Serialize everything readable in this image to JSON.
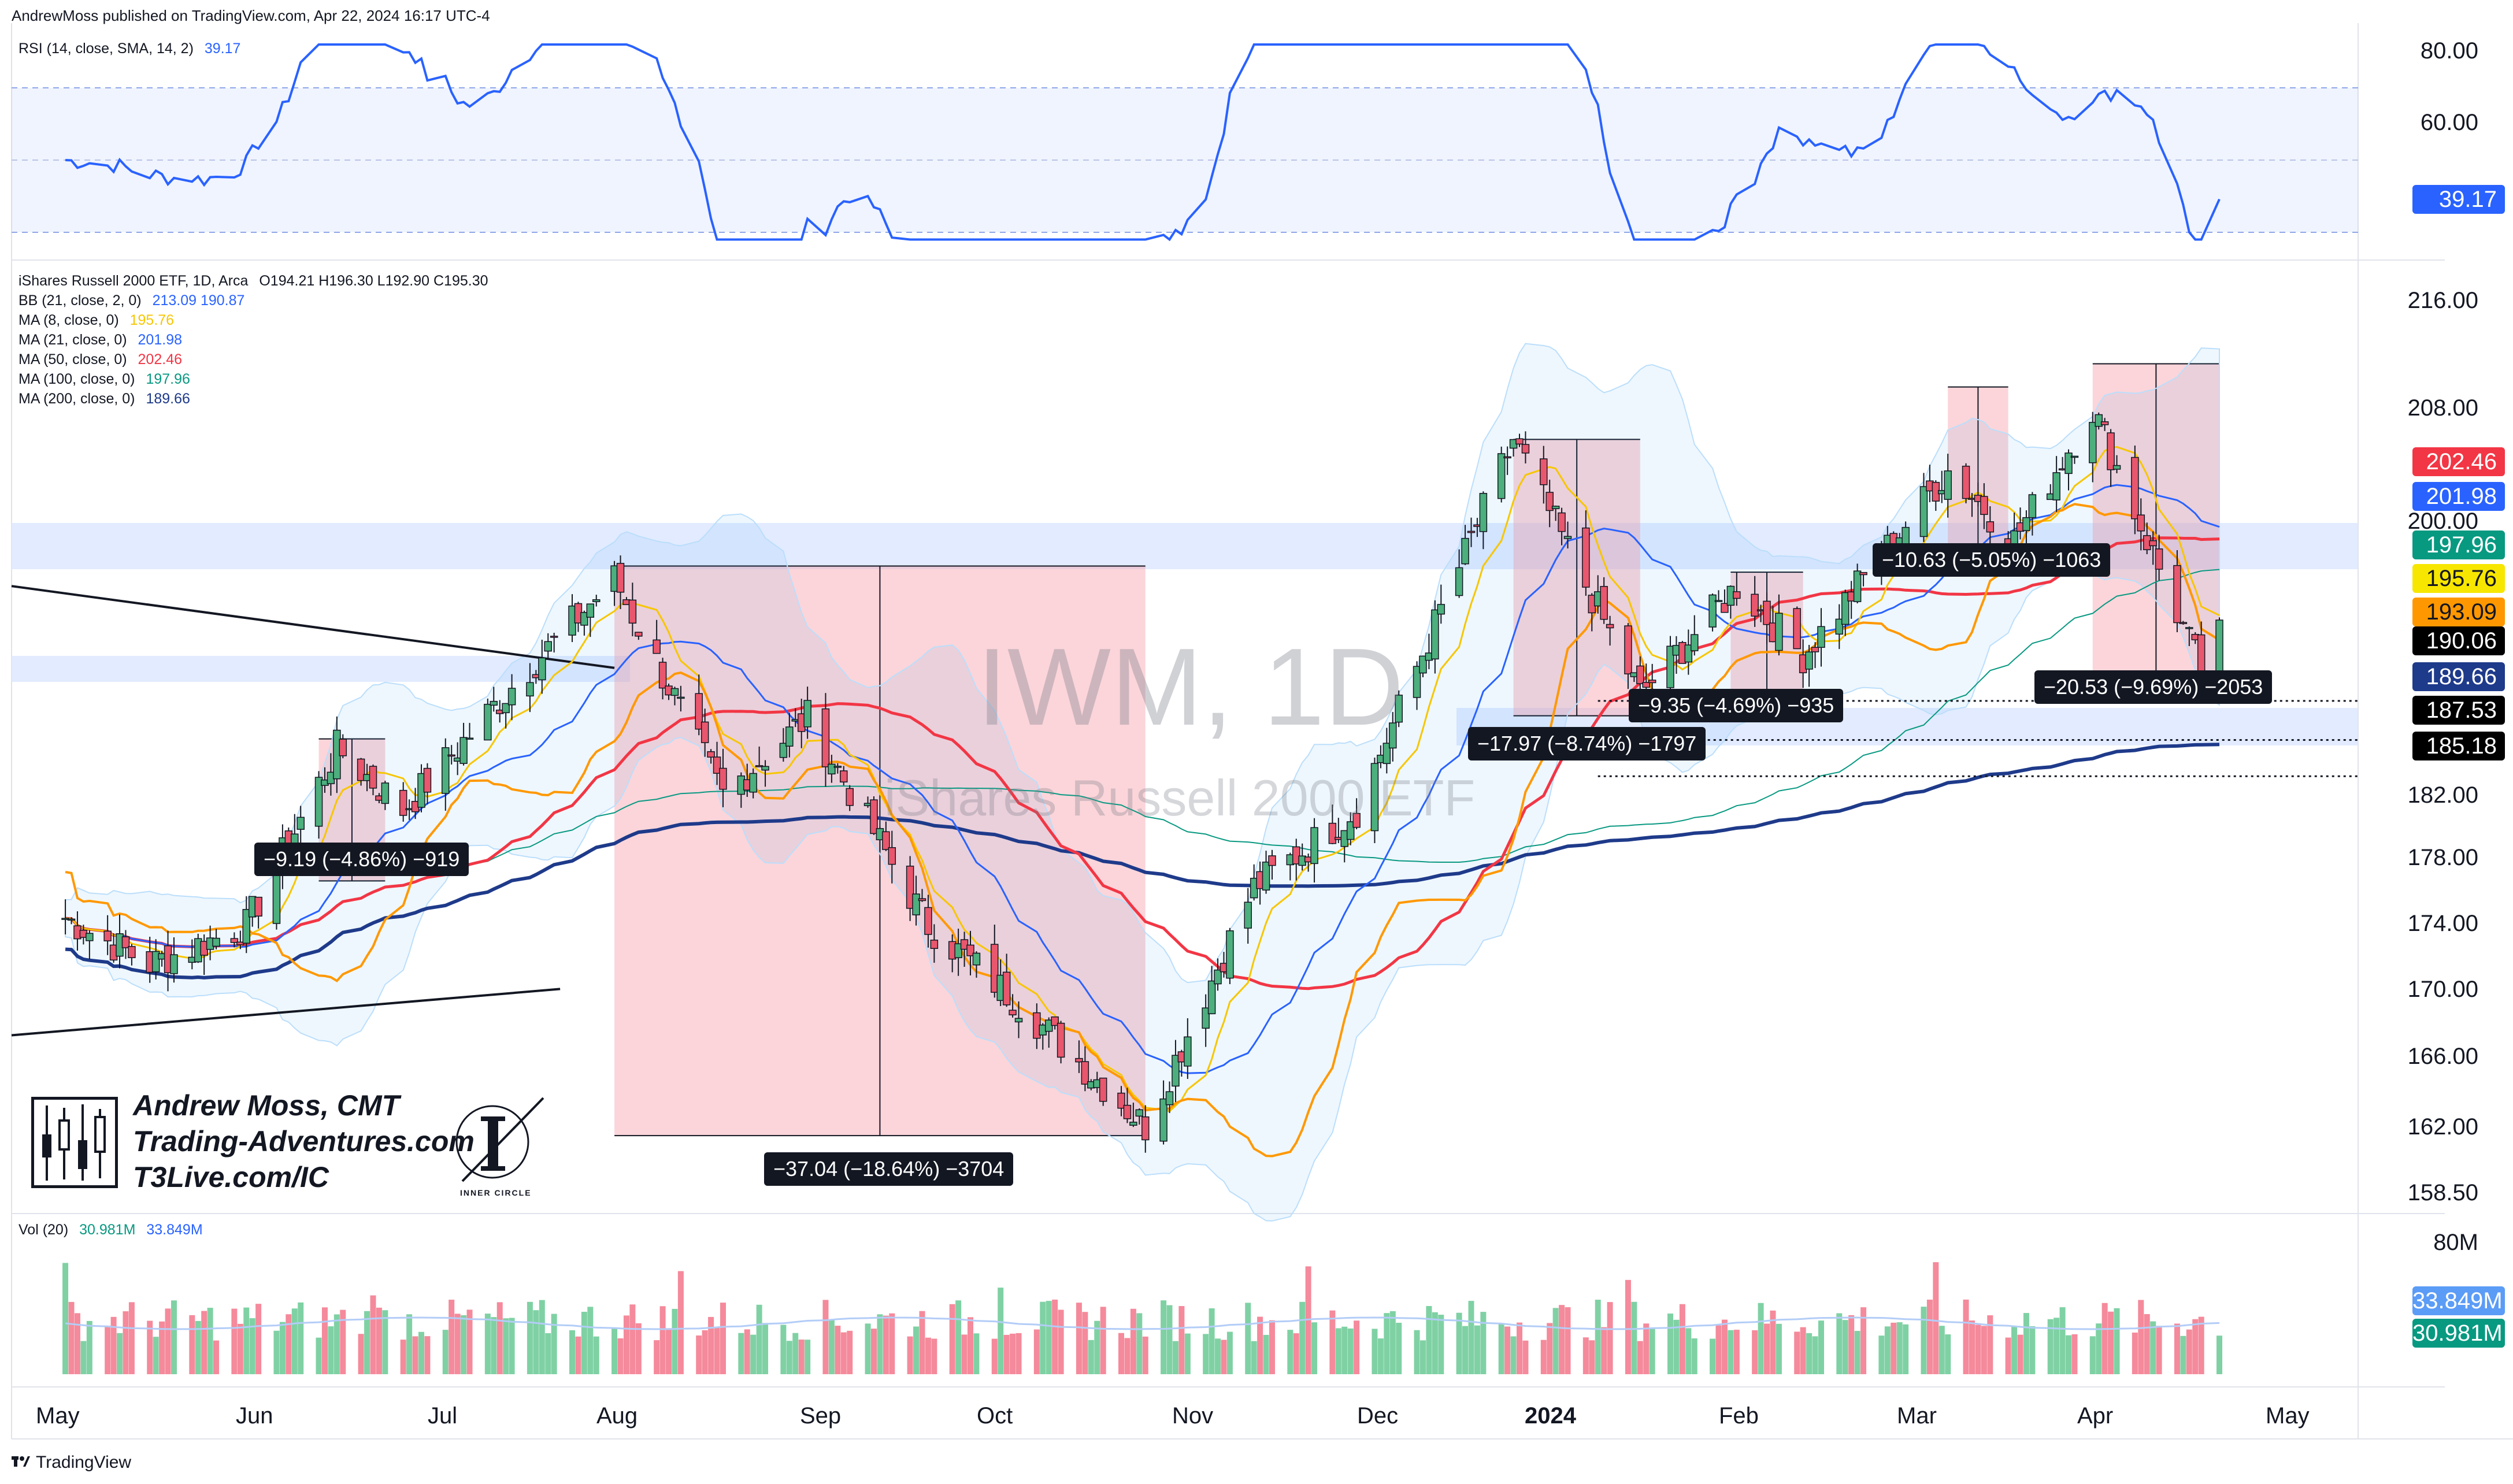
{
  "header": {
    "published": "AndrewMoss published on TradingView.com, Apr 22, 2024 16:17 UTC-4"
  },
  "rsi": {
    "legend": "RSI (14, close, SMA, 14, 2)",
    "value": "39.17",
    "levels": [
      "80.00",
      "60.00"
    ],
    "tag": "39.17"
  },
  "main": {
    "legend_title": "iShares Russell 2000 ETF, 1D, Arca",
    "ohlc": "O194.21  H196.30  L192.90  C195.30",
    "indicators": [
      {
        "label": "BB (21, close, 2, 0)",
        "values": "213.09  190.87",
        "color": "#2962ff"
      },
      {
        "label": "MA (8, close, 0)",
        "values": "195.76",
        "color": "#f7c600"
      },
      {
        "label": "MA (21, close, 0)",
        "values": "201.98",
        "color": "#2962ff"
      },
      {
        "label": "MA (50, close, 0)",
        "values": "202.46",
        "color": "#f23645"
      },
      {
        "label": "MA (100, close, 0)",
        "values": "197.96",
        "color": "#089981"
      },
      {
        "label": "MA (200, close, 0)",
        "values": "189.66",
        "color": "#1e3a8a"
      }
    ],
    "watermark_symbol": "IWM, 1D",
    "watermark_name": "iShares Russell 2000 ETF",
    "price_axis": [
      "216.00",
      "208.00",
      "200.00",
      "182.00",
      "178.00",
      "174.00",
      "170.00",
      "166.00",
      "162.00",
      "158.50"
    ],
    "price_tags": [
      {
        "value": "202.46",
        "bg": "#f23645",
        "fg": "#ffffff"
      },
      {
        "value": "201.98",
        "bg": "#2962ff",
        "fg": "#ffffff"
      },
      {
        "value": "197.96",
        "bg": "#089981",
        "fg": "#ffffff"
      },
      {
        "value": "195.76",
        "bg": "#f7e600",
        "fg": "#131722"
      },
      {
        "value": "193.09",
        "bg": "#ff9800",
        "fg": "#131722"
      },
      {
        "value": "190.06",
        "bg": "#000000",
        "fg": "#ffffff"
      },
      {
        "value": "189.66",
        "bg": "#1e3a8a",
        "fg": "#ffffff"
      },
      {
        "value": "187.53",
        "bg": "#000000",
        "fg": "#ffffff"
      },
      {
        "value": "185.18",
        "bg": "#000000",
        "fg": "#ffffff"
      }
    ],
    "annotations": [
      "−9.19 (−4.86%) −919",
      "−37.04 (−18.64%) −3704",
      "−17.97 (−8.74%) −1797",
      "−9.35 (−4.69%) −935",
      "−10.63 (−5.05%) −1063",
      "−20.53 (−9.69%) −2053"
    ]
  },
  "branding": {
    "name": "Andrew Moss, CMT",
    "site": "Trading-Adventures.com",
    "site2": "T3Live.com/IC",
    "badge": "INNER CIRCLE"
  },
  "volume": {
    "legend": "Vol (20)",
    "value1": "30.981M",
    "value2": "33.849M",
    "axis_top": "80M",
    "tag_ma": "33.849M",
    "tag_vol": "30.981M"
  },
  "time_axis": [
    "May",
    "Jun",
    "Jul",
    "Aug",
    "Sep",
    "Oct",
    "Nov",
    "Dec",
    "2024",
    "Feb",
    "Mar",
    "Apr",
    "May"
  ],
  "footer": "TradingView",
  "chart_data": {
    "type": "candlestick",
    "title": "iShares Russell 2000 ETF, 1D, Arca",
    "symbol": "IWM",
    "timeframe": "1D",
    "last_bar": {
      "open": 194.21,
      "high": 196.3,
      "low": 192.9,
      "close": 195.3
    },
    "ylim": [
      158.5,
      216.0
    ],
    "x_range": [
      "2023-05",
      "2024-05"
    ],
    "approx_close_path": [
      {
        "date": "2023-05-01",
        "close": 176.0
      },
      {
        "date": "2023-05-15",
        "close": 173.0
      },
      {
        "date": "2023-05-31",
        "close": 175.5
      },
      {
        "date": "2023-06-15",
        "close": 187.0
      },
      {
        "date": "2023-06-26",
        "close": 183.0
      },
      {
        "date": "2023-07-14",
        "close": 191.0
      },
      {
        "date": "2023-07-31",
        "close": 198.0
      },
      {
        "date": "2023-08-18",
        "close": 184.0
      },
      {
        "date": "2023-09-01",
        "close": 189.0
      },
      {
        "date": "2023-09-21",
        "close": 175.5
      },
      {
        "date": "2023-10-06",
        "close": 170.5
      },
      {
        "date": "2023-10-27",
        "close": 162.5
      },
      {
        "date": "2023-11-14",
        "close": 178.0
      },
      {
        "date": "2023-12-01",
        "close": 183.0
      },
      {
        "date": "2023-12-27",
        "close": 207.0
      },
      {
        "date": "2024-01-17",
        "close": 190.5
      },
      {
        "date": "2024-02-02",
        "close": 197.5
      },
      {
        "date": "2024-02-13",
        "close": 193.0
      },
      {
        "date": "2024-03-08",
        "close": 205.0
      },
      {
        "date": "2024-03-19",
        "close": 200.5
      },
      {
        "date": "2024-04-01",
        "close": 209.0
      },
      {
        "date": "2024-04-19",
        "close": 192.0
      },
      {
        "date": "2024-04-22",
        "close": 195.3
      }
    ],
    "moving_averages": {
      "MA8": 195.76,
      "MA21": 201.98,
      "MA50": 202.46,
      "MA100": 197.96,
      "MA200": 189.66
    },
    "bollinger": {
      "upper": 213.09,
      "lower": 190.87
    },
    "horizontal_levels": [
      190.06,
      187.53,
      185.18
    ],
    "drawdowns": [
      {
        "label": "−9.19 (−4.86%) −919",
        "change": -9.19,
        "pct": -4.86
      },
      {
        "label": "−37.04 (−18.64%) −3704",
        "change": -37.04,
        "pct": -18.64
      },
      {
        "label": "−17.97 (−8.74%) −1797",
        "change": -17.97,
        "pct": -8.74
      },
      {
        "label": "−9.35 (−4.69%) −935",
        "change": -9.35,
        "pct": -4.69
      },
      {
        "label": "−10.63 (−5.05%) −1063",
        "change": -10.63,
        "pct": -5.05
      },
      {
        "label": "−20.53 (−9.69%) −2053",
        "change": -20.53,
        "pct": -9.69
      }
    ],
    "rsi": {
      "last": 39.17,
      "levels": [
        70,
        50,
        30
      ]
    },
    "volume": {
      "last": 30.981,
      "ma20": 33.849,
      "unit": "M"
    }
  }
}
